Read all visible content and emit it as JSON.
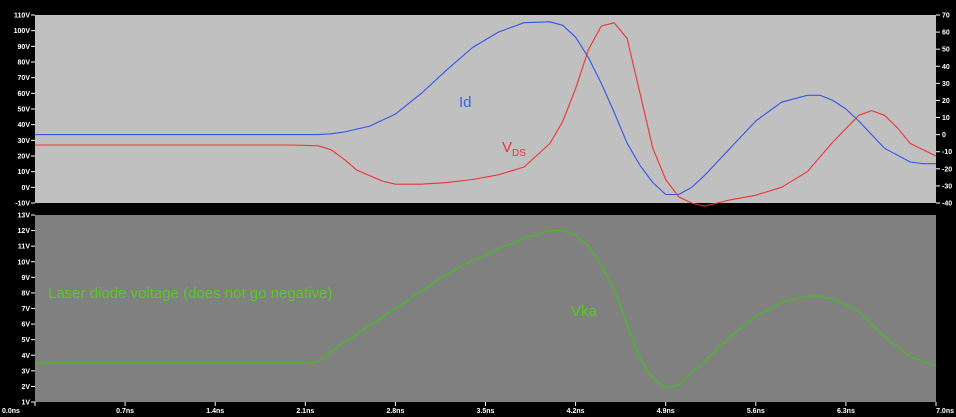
{
  "chart_data": [
    {
      "type": "line",
      "title": "",
      "xlabel": "",
      "ylabel": "",
      "xlim": [
        0,
        7
      ],
      "ylim": [
        -10,
        110
      ],
      "y2lim": [
        -40,
        70
      ],
      "grid": false,
      "colors": {
        "background": "#c0c0c0",
        "Id": "#3355ee",
        "VDS": "#ee3333"
      },
      "yticks": [
        "-10V",
        "0V",
        "10V",
        "20V",
        "30V",
        "40V",
        "50V",
        "60V",
        "70V",
        "80V",
        "90V",
        "100V",
        "110V"
      ],
      "y2ticks": [
        "-40",
        "-30",
        "-20",
        "-10",
        "0",
        "10",
        "20",
        "30",
        "40",
        "50",
        "60",
        "70"
      ],
      "annotations": {
        "id": "Id",
        "vds_main": "V",
        "vds_sub": "DS"
      },
      "series": [
        {
          "name": "Id",
          "axis": "right",
          "x": [
            0,
            2.0,
            2.1,
            2.2,
            2.3,
            2.4,
            2.6,
            2.8,
            3.0,
            3.2,
            3.4,
            3.6,
            3.8,
            4.0,
            4.1,
            4.2,
            4.3,
            4.4,
            4.5,
            4.6,
            4.7,
            4.8,
            4.9,
            5.0,
            5.1,
            5.2,
            5.4,
            5.6,
            5.8,
            6.0,
            6.1,
            6.2,
            6.3,
            6.4,
            6.5,
            6.6,
            6.8,
            6.9,
            7.0
          ],
          "values": [
            0,
            0,
            0,
            0,
            0.5,
            1.5,
            5,
            12,
            24,
            38,
            51,
            60,
            65.5,
            66,
            64,
            57,
            45,
            30,
            13,
            -5,
            -18,
            -28,
            -35,
            -35,
            -31,
            -24,
            -8,
            8,
            19,
            23,
            23,
            20,
            15,
            8,
            0,
            -8,
            -16,
            -17,
            -17
          ]
        },
        {
          "name": "VDS",
          "axis": "left",
          "x": [
            0,
            2.0,
            2.2,
            2.3,
            2.4,
            2.5,
            2.7,
            2.8,
            3.0,
            3.2,
            3.4,
            3.6,
            3.8,
            4.0,
            4.1,
            4.2,
            4.3,
            4.4,
            4.5,
            4.6,
            4.7,
            4.8,
            4.9,
            5.0,
            5.1,
            5.2,
            5.4,
            5.6,
            5.8,
            6.0,
            6.2,
            6.4,
            6.5,
            6.6,
            6.7,
            6.8,
            7.0
          ],
          "values": [
            27,
            27,
            26.5,
            24,
            18,
            11,
            4,
            2,
            2,
            3,
            5,
            8,
            13,
            28,
            42,
            63,
            88,
            103,
            105,
            95,
            60,
            25,
            5,
            -6,
            -10,
            -12,
            -8,
            -5,
            0,
            10,
            29,
            46,
            49,
            46,
            38,
            28,
            20
          ]
        }
      ]
    },
    {
      "type": "line",
      "title": "",
      "xlabel": "",
      "ylabel": "",
      "xlim": [
        0,
        7
      ],
      "ylim": [
        1,
        13
      ],
      "grid": false,
      "colors": {
        "background": "#808080",
        "Vka": "#44bb22"
      },
      "xticks": [
        "0.0ns",
        "0.7ns",
        "1.4ns",
        "2.1ns",
        "2.8ns",
        "3.5ns",
        "4.2ns",
        "4.9ns",
        "5.6ns",
        "6.3ns",
        "7.0ns"
      ],
      "yticks": [
        "1V",
        "2V",
        "3V",
        "4V",
        "5V",
        "6V",
        "7V",
        "8V",
        "9V",
        "10V",
        "11V",
        "12V",
        "13V"
      ],
      "annotations": {
        "note": "Laser diode voltage (does not go negative)",
        "vka": "Vka"
      },
      "series": [
        {
          "name": "Vka",
          "axis": "left",
          "x": [
            0,
            2.1,
            2.2,
            2.4,
            2.6,
            2.8,
            3.0,
            3.2,
            3.4,
            3.6,
            3.8,
            4.0,
            4.1,
            4.2,
            4.3,
            4.4,
            4.5,
            4.6,
            4.7,
            4.8,
            4.9,
            5.0,
            5.2,
            5.4,
            5.6,
            5.8,
            6.0,
            6.1,
            6.2,
            6.4,
            6.6,
            6.8,
            7.0
          ],
          "values": [
            3.5,
            3.5,
            3.6,
            4.8,
            5.9,
            7.0,
            8.1,
            9.2,
            10.1,
            10.8,
            11.5,
            12.0,
            12.0,
            11.7,
            11.0,
            9.8,
            8.2,
            6.0,
            3.8,
            2.5,
            1.9,
            2.1,
            3.6,
            5.2,
            6.5,
            7.4,
            7.8,
            7.8,
            7.6,
            6.8,
            5.2,
            3.9,
            3.3
          ]
        }
      ]
    }
  ]
}
